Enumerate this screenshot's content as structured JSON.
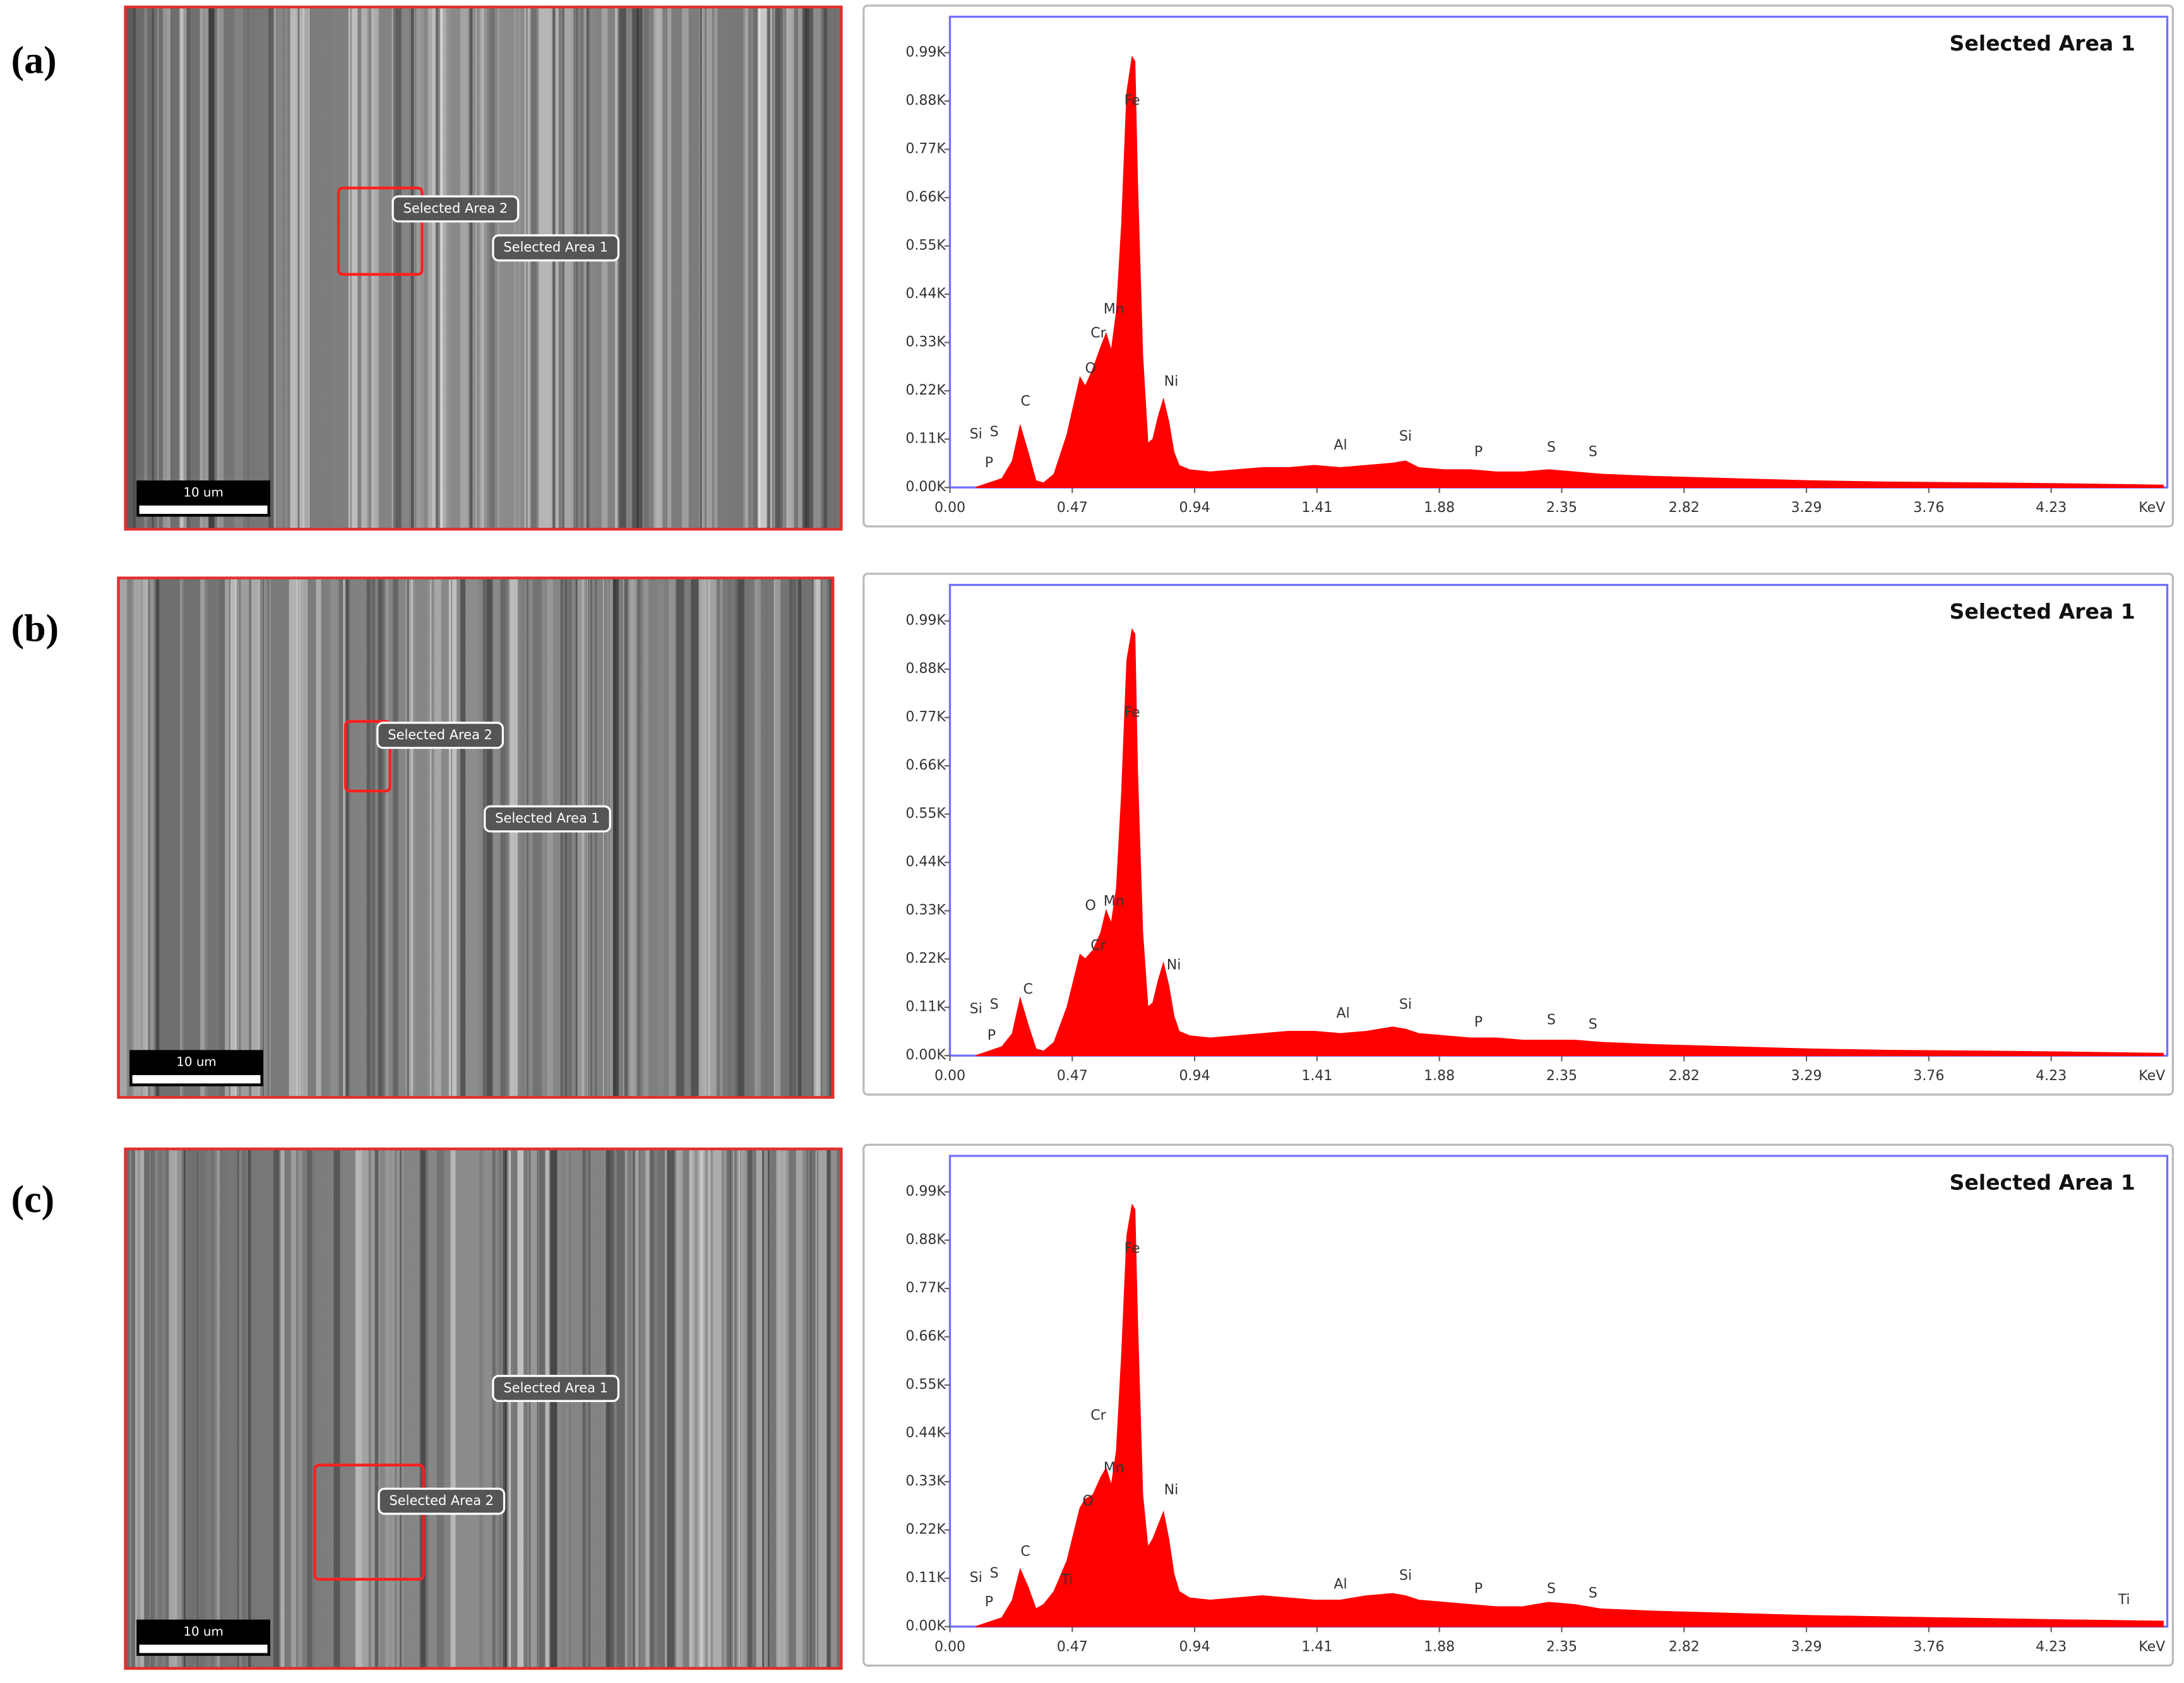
{
  "panels": [
    {
      "label": "(a)",
      "image_labels": [
        "Selected Area 2",
        "Selected Area 1"
      ],
      "scale_bar": "10 um"
    },
    {
      "label": "(b)",
      "image_labels": [
        "Selected Area 2",
        "Selected Area 1"
      ],
      "scale_bar": "10 um"
    },
    {
      "label": "(c)",
      "image_labels": [
        "Selected Area 1",
        "Selected Area 2"
      ],
      "scale_bar": "10 um"
    }
  ],
  "chart_data": [
    {
      "type": "area",
      "title": "Selected Area 1",
      "x_label": "KeV",
      "color": "#ff0000",
      "frame_color": "#7070ff",
      "xlim": [
        0,
        4.66
      ],
      "ylim": [
        0,
        1072
      ],
      "xticks": [
        {
          "value": 0,
          "label": "0.00"
        },
        0.47,
        0.94,
        1.41,
        1.88,
        2.35,
        2.82,
        3.29,
        3.76,
        4.23
      ],
      "yticks": [
        {
          "value": 0,
          "label": "0.00K"
        },
        {
          "value": 110,
          "label": "0.11K"
        },
        {
          "value": 220,
          "label": "0.22K"
        },
        {
          "value": 330,
          "label": "0.33K"
        },
        {
          "value": 440,
          "label": "0.44K"
        },
        {
          "value": 550,
          "label": "0.55K"
        },
        {
          "value": 660,
          "label": "0.66K"
        },
        {
          "value": 770,
          "label": "0.77K"
        },
        {
          "value": 880,
          "label": "0.88K"
        },
        {
          "value": 990,
          "label": "0.99K"
        }
      ],
      "x": [
        0.1,
        0.15,
        0.2,
        0.24,
        0.27,
        0.3,
        0.33,
        0.36,
        0.4,
        0.45,
        0.5,
        0.52,
        0.55,
        0.58,
        0.6,
        0.62,
        0.64,
        0.66,
        0.68,
        0.7,
        0.71,
        0.72,
        0.74,
        0.76,
        0.78,
        0.8,
        0.82,
        0.84,
        0.86,
        0.88,
        0.92,
        1.0,
        1.1,
        1.2,
        1.3,
        1.4,
        1.5,
        1.6,
        1.7,
        1.75,
        1.8,
        1.9,
        2.0,
        2.1,
        2.2,
        2.3,
        2.4,
        2.5,
        2.7,
        3.0,
        3.3,
        3.6,
        4.0,
        4.3,
        4.66
      ],
      "values": [
        0,
        10,
        20,
        60,
        140,
        80,
        15,
        10,
        30,
        120,
        250,
        230,
        270,
        320,
        350,
        310,
        400,
        600,
        900,
        980,
        970,
        700,
        300,
        100,
        110,
        160,
        200,
        150,
        80,
        50,
        40,
        35,
        40,
        45,
        45,
        50,
        45,
        50,
        55,
        60,
        45,
        40,
        40,
        35,
        35,
        40,
        35,
        30,
        25,
        20,
        15,
        12,
        10,
        8,
        5
      ],
      "annotations": [
        {
          "text": "Si",
          "x": 0.1,
          "y": 120
        },
        {
          "text": "S",
          "x": 0.17,
          "y": 125
        },
        {
          "text": "P",
          "x": 0.15,
          "y": 55
        },
        {
          "text": "C",
          "x": 0.29,
          "y": 195
        },
        {
          "text": "O",
          "x": 0.54,
          "y": 270
        },
        {
          "text": "Cr",
          "x": 0.57,
          "y": 350
        },
        {
          "text": "Mn",
          "x": 0.63,
          "y": 405
        },
        {
          "text": "Fe",
          "x": 0.7,
          "y": 880
        },
        {
          "text": "Ni",
          "x": 0.85,
          "y": 240
        },
        {
          "text": "Al",
          "x": 1.5,
          "y": 95
        },
        {
          "text": "Si",
          "x": 1.75,
          "y": 115
        },
        {
          "text": "P",
          "x": 2.03,
          "y": 80
        },
        {
          "text": "S",
          "x": 2.31,
          "y": 90
        },
        {
          "text": "S",
          "x": 2.47,
          "y": 80
        }
      ]
    },
    {
      "type": "area",
      "title": "Selected Area 1",
      "x_label": "KeV",
      "color": "#ff0000",
      "frame_color": "#7070ff",
      "xlim": [
        0,
        4.66
      ],
      "ylim": [
        0,
        1072
      ],
      "xticks": [
        {
          "value": 0,
          "label": "0.00"
        },
        0.47,
        0.94,
        1.41,
        1.88,
        2.35,
        2.82,
        3.29,
        3.76,
        4.23
      ],
      "yticks": [
        {
          "value": 0,
          "label": "0.00K"
        },
        {
          "value": 110,
          "label": "0.11K"
        },
        {
          "value": 220,
          "label": "0.22K"
        },
        {
          "value": 330,
          "label": "0.33K"
        },
        {
          "value": 440,
          "label": "0.44K"
        },
        {
          "value": 550,
          "label": "0.55K"
        },
        {
          "value": 660,
          "label": "0.66K"
        },
        {
          "value": 770,
          "label": "0.77K"
        },
        {
          "value": 880,
          "label": "0.88K"
        },
        {
          "value": 990,
          "label": "0.99K"
        }
      ],
      "x": [
        0.1,
        0.15,
        0.2,
        0.24,
        0.27,
        0.3,
        0.33,
        0.36,
        0.4,
        0.45,
        0.5,
        0.52,
        0.55,
        0.58,
        0.6,
        0.62,
        0.64,
        0.66,
        0.68,
        0.7,
        0.71,
        0.72,
        0.74,
        0.76,
        0.78,
        0.8,
        0.82,
        0.84,
        0.86,
        0.88,
        0.92,
        1.0,
        1.1,
        1.2,
        1.3,
        1.4,
        1.5,
        1.6,
        1.7,
        1.75,
        1.8,
        1.9,
        2.0,
        2.1,
        2.2,
        2.3,
        2.4,
        2.5,
        2.7,
        3.0,
        3.3,
        3.6,
        4.0,
        4.3,
        4.66
      ],
      "values": [
        0,
        10,
        20,
        50,
        130,
        70,
        15,
        10,
        30,
        110,
        230,
        220,
        240,
        280,
        330,
        300,
        380,
        600,
        900,
        970,
        960,
        650,
        280,
        110,
        120,
        170,
        210,
        160,
        90,
        55,
        45,
        40,
        45,
        50,
        55,
        55,
        50,
        55,
        65,
        60,
        50,
        45,
        40,
        40,
        35,
        35,
        35,
        30,
        25,
        20,
        15,
        12,
        10,
        8,
        5
      ],
      "annotations": [
        {
          "text": "Si",
          "x": 0.1,
          "y": 105
        },
        {
          "text": "S",
          "x": 0.17,
          "y": 115
        },
        {
          "text": "P",
          "x": 0.16,
          "y": 45
        },
        {
          "text": "C",
          "x": 0.3,
          "y": 150
        },
        {
          "text": "O",
          "x": 0.54,
          "y": 340
        },
        {
          "text": "Mn",
          "x": 0.63,
          "y": 350
        },
        {
          "text": "Cr",
          "x": 0.57,
          "y": 250
        },
        {
          "text": "Fe",
          "x": 0.7,
          "y": 780
        },
        {
          "text": "Ni",
          "x": 0.86,
          "y": 205
        },
        {
          "text": "Al",
          "x": 1.51,
          "y": 95
        },
        {
          "text": "Si",
          "x": 1.75,
          "y": 115
        },
        {
          "text": "P",
          "x": 2.03,
          "y": 75
        },
        {
          "text": "S",
          "x": 2.31,
          "y": 80
        },
        {
          "text": "S",
          "x": 2.47,
          "y": 70
        }
      ]
    },
    {
      "type": "area",
      "title": "Selected Area 1",
      "x_label": "KeV",
      "color": "#ff0000",
      "frame_color": "#7070ff",
      "xlim": [
        0,
        4.66
      ],
      "ylim": [
        0,
        1072
      ],
      "xticks": [
        {
          "value": 0,
          "label": "0.00"
        },
        0.47,
        0.94,
        1.41,
        1.88,
        2.35,
        2.82,
        3.29,
        3.76,
        4.23
      ],
      "yticks": [
        {
          "value": 0,
          "label": "0.00K"
        },
        {
          "value": 110,
          "label": "0.11K"
        },
        {
          "value": 220,
          "label": "0.22K"
        },
        {
          "value": 330,
          "label": "0.33K"
        },
        {
          "value": 440,
          "label": "0.44K"
        },
        {
          "value": 550,
          "label": "0.55K"
        },
        {
          "value": 660,
          "label": "0.66K"
        },
        {
          "value": 770,
          "label": "0.77K"
        },
        {
          "value": 880,
          "label": "0.88K"
        },
        {
          "value": 990,
          "label": "0.99K"
        }
      ],
      "x": [
        0.1,
        0.15,
        0.2,
        0.24,
        0.27,
        0.3,
        0.33,
        0.36,
        0.4,
        0.45,
        0.5,
        0.52,
        0.55,
        0.58,
        0.6,
        0.62,
        0.64,
        0.66,
        0.68,
        0.7,
        0.71,
        0.72,
        0.74,
        0.76,
        0.78,
        0.8,
        0.82,
        0.84,
        0.86,
        0.88,
        0.92,
        1.0,
        1.1,
        1.2,
        1.3,
        1.4,
        1.5,
        1.6,
        1.7,
        1.75,
        1.8,
        1.9,
        2.0,
        2.1,
        2.2,
        2.3,
        2.4,
        2.5,
        2.7,
        3.0,
        3.3,
        3.6,
        4.0,
        4.3,
        4.66
      ],
      "values": [
        0,
        10,
        20,
        60,
        130,
        90,
        40,
        50,
        80,
        150,
        270,
        290,
        300,
        340,
        360,
        320,
        400,
        620,
        890,
        960,
        950,
        700,
        300,
        180,
        200,
        230,
        260,
        200,
        120,
        80,
        65,
        60,
        65,
        70,
        65,
        60,
        60,
        70,
        75,
        70,
        60,
        55,
        50,
        45,
        45,
        55,
        50,
        40,
        35,
        30,
        25,
        22,
        18,
        15,
        12
      ],
      "annotations": [
        {
          "text": "Si",
          "x": 0.1,
          "y": 110
        },
        {
          "text": "S",
          "x": 0.17,
          "y": 120
        },
        {
          "text": "P",
          "x": 0.15,
          "y": 55
        },
        {
          "text": "C",
          "x": 0.29,
          "y": 170
        },
        {
          "text": "Ti",
          "x": 0.45,
          "y": 105
        },
        {
          "text": "O",
          "x": 0.53,
          "y": 285
        },
        {
          "text": "Mn",
          "x": 0.63,
          "y": 360
        },
        {
          "text": "Cr",
          "x": 0.57,
          "y": 480
        },
        {
          "text": "Fe",
          "x": 0.7,
          "y": 860
        },
        {
          "text": "Ni",
          "x": 0.85,
          "y": 310
        },
        {
          "text": "Al",
          "x": 1.5,
          "y": 95
        },
        {
          "text": "Si",
          "x": 1.75,
          "y": 115
        },
        {
          "text": "P",
          "x": 2.03,
          "y": 85
        },
        {
          "text": "S",
          "x": 2.31,
          "y": 85
        },
        {
          "text": "S",
          "x": 2.47,
          "y": 75
        },
        {
          "text": "Ti",
          "x": 4.51,
          "y": 60
        }
      ]
    }
  ]
}
